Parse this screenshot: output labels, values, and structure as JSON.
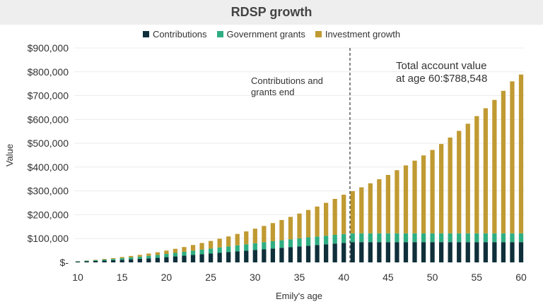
{
  "chart_data": {
    "type": "bar",
    "stacked": true,
    "title": "RDSP growth",
    "xlabel": "Emily's age",
    "ylabel": "Value",
    "ylim": [
      0,
      900000
    ],
    "yticks": [
      0,
      100000,
      200000,
      300000,
      400000,
      500000,
      600000,
      700000,
      800000,
      900000
    ],
    "ytick_labels": [
      "$-",
      "$100,000",
      "$200,000",
      "$300,000",
      "$400,000",
      "$500,000",
      "$600,000",
      "$700,000",
      "$800,000",
      "$900,000"
    ],
    "xticks": [
      10,
      15,
      20,
      25,
      30,
      35,
      40,
      45,
      50,
      55,
      60
    ],
    "grid": "horizontal",
    "legend": "top-center",
    "x": [
      10,
      11,
      12,
      13,
      14,
      15,
      16,
      17,
      18,
      19,
      20,
      21,
      22,
      23,
      24,
      25,
      26,
      27,
      28,
      29,
      30,
      31,
      32,
      33,
      34,
      35,
      36,
      37,
      38,
      39,
      40,
      41,
      42,
      43,
      44,
      45,
      46,
      47,
      48,
      49,
      50,
      51,
      52,
      53,
      54,
      55,
      56,
      57,
      58,
      59,
      60
    ],
    "series": [
      {
        "name": "Contributions",
        "color": "#0f2f3a",
        "values": [
          3000,
          4500,
          6000,
          7500,
          9000,
          11000,
          13000,
          15000,
          17000,
          19000,
          22000,
          25000,
          28000,
          31000,
          34000,
          37000,
          40000,
          43000,
          46000,
          49000,
          52000,
          55000,
          58000,
          61000,
          64000,
          67000,
          70000,
          73000,
          76000,
          79000,
          82000,
          85000,
          85000,
          85000,
          85000,
          85000,
          85000,
          85000,
          85000,
          85000,
          85000,
          85000,
          85000,
          85000,
          85000,
          85000,
          85000,
          85000,
          85000,
          85000,
          85000
        ]
      },
      {
        "name": "Government grants",
        "color": "#2fae82",
        "values": [
          1500,
          2500,
          3500,
          4500,
          5500,
          7000,
          8000,
          9000,
          10500,
          12000,
          13500,
          15000,
          16500,
          18000,
          19500,
          21000,
          22500,
          24000,
          25500,
          27000,
          28500,
          30000,
          31000,
          32000,
          33000,
          34000,
          35000,
          35500,
          36000,
          36500,
          37000,
          37000,
          37000,
          37000,
          37000,
          37000,
          37000,
          37000,
          37000,
          37000,
          37000,
          37000,
          37000,
          37000,
          37000,
          37000,
          37000,
          37000,
          37000,
          37000,
          37000
        ]
      },
      {
        "name": "Investment growth",
        "color": "#c09a32",
        "values": [
          500,
          1000,
          1500,
          2500,
          3500,
          4500,
          6000,
          7500,
          9500,
          11500,
          14000,
          17000,
          20000,
          24000,
          28000,
          32000,
          37000,
          42000,
          48000,
          54000,
          61000,
          68000,
          76000,
          85000,
          94000,
          104000,
          115000,
          126000,
          138000,
          151000,
          165000,
          177000,
          193000,
          210000,
          227000,
          245000,
          265000,
          285000,
          305000,
          327000,
          350000,
          375000,
          402000,
          430000,
          460000,
          492000,
          525000,
          560000,
          598000,
          638000,
          666548
        ]
      }
    ],
    "annotations": [
      {
        "text_lines": [
          "Contributions and",
          "grants end"
        ]
      },
      {
        "text_lines": [
          "Total account value",
          "at age 60:$788,548"
        ]
      }
    ],
    "reference_line": {
      "x": 40.7,
      "style": "dashed"
    }
  }
}
